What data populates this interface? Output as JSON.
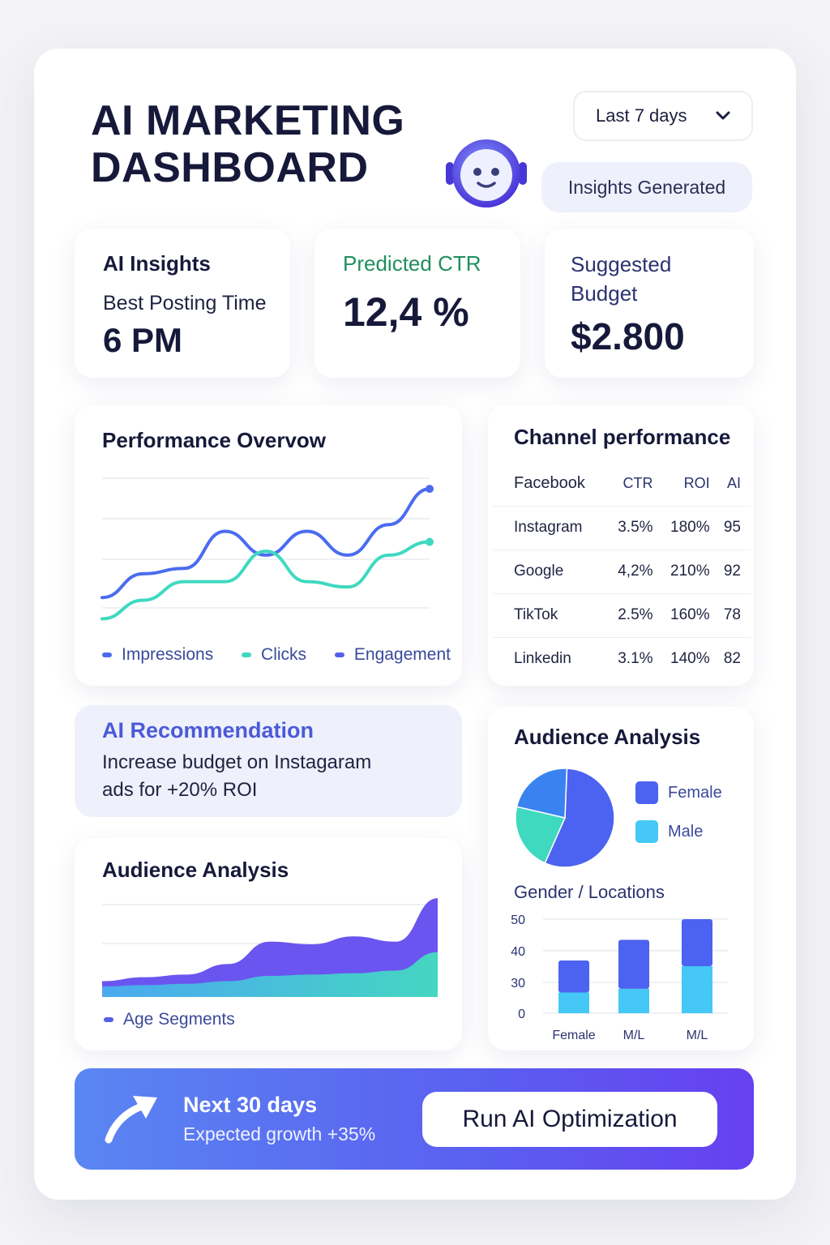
{
  "header": {
    "title_line1": "AI MARKETING",
    "title_line2": "DASHBOARD",
    "range_select": "Last 7 days",
    "bubble": "Insights Generated"
  },
  "kpis": {
    "insights": {
      "title": "AI Insights",
      "label": "Best Posting Time",
      "value": "6 PM"
    },
    "ctr": {
      "title": "Predicted CTR",
      "value": "12,4 %"
    },
    "budget": {
      "title_line1": "Suggested",
      "title_line2": "Budget",
      "value": "$2.800"
    }
  },
  "performance": {
    "title": "Performance Overvow",
    "legend": [
      "Impressions",
      "Clicks",
      "Engagement"
    ]
  },
  "channels": {
    "title": "Channel performance",
    "headers": [
      "Facebook",
      "CTR",
      "ROI",
      "AI"
    ],
    "rows": [
      [
        "Instagram",
        "3.5%",
        "180%",
        "95"
      ],
      [
        "Google",
        "4,2%",
        "210%",
        "92"
      ],
      [
        "TikTok",
        "2.5%",
        "160%",
        "78"
      ],
      [
        "Linkedin",
        "3.1%",
        "140%",
        "82"
      ]
    ]
  },
  "recommendation": {
    "title": "AI Recommendation",
    "line1": "Increase budget on Instagaram",
    "line2": "ads for +20% ROI"
  },
  "age_chart": {
    "title": "Audience Analysis",
    "legend": "Age Segments"
  },
  "gender": {
    "title": "Audience Analysis",
    "pie_legend": [
      "Female",
      "Male"
    ],
    "bar_title": "Gender / Locations",
    "y_ticks": [
      "50",
      "40",
      "30",
      "0"
    ],
    "x_labels": [
      "Female",
      "M/L",
      "M/L"
    ]
  },
  "cta": {
    "line1": "Next 30 days",
    "line2": "Expected growth +35%",
    "button": "Run AI Optimization"
  },
  "colors": {
    "blue": "#4b6cf0",
    "teal": "#3fd9c0",
    "purple": "#6a55f0",
    "green_text": "#1f8f5e",
    "accent_text": "#4a5ad8",
    "female": "#4c62f0",
    "male": "#45c8f5"
  },
  "chart_data": [
    {
      "type": "line",
      "title": "Performance Overvow",
      "x": [
        0,
        1,
        2,
        3,
        4,
        5,
        6,
        7,
        8
      ],
      "series": [
        {
          "name": "Impressions",
          "values": [
            20,
            38,
            42,
            70,
            52,
            70,
            52,
            75,
            102
          ]
        },
        {
          "name": "Clicks",
          "values": [
            4,
            18,
            32,
            32,
            55,
            32,
            28,
            52,
            62
          ]
        }
      ],
      "grid": true,
      "legend": "bottom"
    },
    {
      "type": "area",
      "title": "Audience Analysis",
      "x": [
        0,
        1,
        2,
        3,
        4,
        5,
        6,
        7,
        8
      ],
      "series": [
        {
          "name": "Age Segments",
          "values": [
            12,
            15,
            17,
            25,
            42,
            40,
            46,
            42,
            75
          ]
        },
        {
          "values": [
            8,
            9,
            10,
            12,
            16,
            17,
            18,
            20,
            34
          ]
        }
      ],
      "legend": "bottom"
    },
    {
      "type": "pie",
      "labels": [
        "Female",
        "Male",
        ""
      ],
      "values": [
        56,
        22,
        22
      ]
    },
    {
      "type": "bar",
      "title": "Gender / Locations",
      "categories": [
        "Female",
        "M/L",
        "M/L"
      ],
      "series": [
        {
          "name": "Male",
          "values": [
            11,
            13,
            25
          ]
        },
        {
          "name": "Female",
          "values": [
            17,
            26,
            25
          ]
        }
      ],
      "y_ticks": [
        "0",
        "30",
        "40",
        "50"
      ],
      "ylim": [
        0,
        55
      ]
    }
  ]
}
